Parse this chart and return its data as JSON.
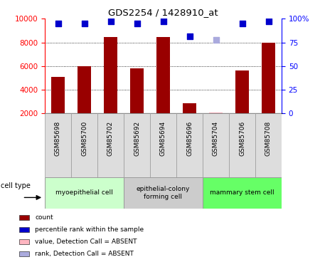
{
  "title": "GDS2254 / 1428910_at",
  "samples": [
    "GSM85698",
    "GSM85700",
    "GSM85702",
    "GSM85692",
    "GSM85694",
    "GSM85696",
    "GSM85704",
    "GSM85706",
    "GSM85708"
  ],
  "bar_values": [
    5100,
    6000,
    8450,
    5800,
    8450,
    2850,
    null,
    5600,
    8000
  ],
  "absent_bar_value": 2100,
  "absent_bar_index": 6,
  "bar_color": "#990000",
  "absent_bar_color": "#FFB6C1",
  "dot_values": [
    9600,
    9600,
    9800,
    9600,
    9800,
    8500,
    null,
    9600,
    9800
  ],
  "absent_dot_value": 8200,
  "absent_dot_index": 6,
  "dot_color": "#0000CC",
  "absent_dot_color": "#AAAADD",
  "ylim_left": [
    2000,
    10000
  ],
  "ylim_right": [
    0,
    100
  ],
  "yticks_left": [
    2000,
    4000,
    6000,
    8000,
    10000
  ],
  "yticks_right": [
    0,
    25,
    50,
    75,
    100
  ],
  "ytick_labels_right": [
    "0",
    "25",
    "50",
    "75",
    "100%"
  ],
  "cell_groups": [
    {
      "label": "myoepithelial cell",
      "indices": [
        0,
        1,
        2
      ],
      "color": "#ccffcc"
    },
    {
      "label": "epithelial-colony\nforming cell",
      "indices": [
        3,
        4,
        5
      ],
      "color": "#cccccc"
    },
    {
      "label": "mammary stem cell",
      "indices": [
        6,
        7,
        8
      ],
      "color": "#66ff66"
    }
  ],
  "sample_box_color": "#dddddd",
  "legend_items": [
    {
      "label": "count",
      "color": "#990000"
    },
    {
      "label": "percentile rank within the sample",
      "color": "#0000CC"
    },
    {
      "label": "value, Detection Call = ABSENT",
      "color": "#FFB6C1"
    },
    {
      "label": "rank, Detection Call = ABSENT",
      "color": "#AAAADD"
    }
  ],
  "cell_type_label": "cell type",
  "bar_width": 0.5,
  "dot_size": 40
}
